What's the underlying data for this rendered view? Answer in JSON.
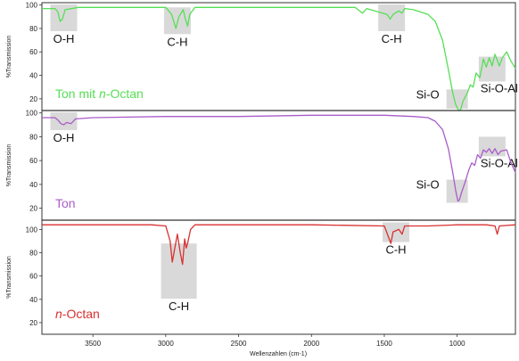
{
  "chart_data": {
    "type": "line",
    "title": "",
    "xlabel": "Wellenzahlen (cm-1)",
    "ylabel": "%Transmission",
    "xlim": [
      3850,
      600
    ],
    "x_reversed": true,
    "x_ticks": [
      3500,
      3000,
      2500,
      2000,
      1500,
      1000
    ],
    "grid": false,
    "panels": [
      {
        "name_prefix": "Ton mit ",
        "name_italic": "n",
        "name_suffix": "-Octan",
        "color": "#55e055",
        "ylim": [
          10,
          102
        ],
        "y_ticks": [
          100,
          80,
          60,
          40,
          20
        ],
        "points": [
          [
            3850,
            97
          ],
          [
            3760,
            97
          ],
          [
            3740,
            94
          ],
          [
            3725,
            86
          ],
          [
            3710,
            88
          ],
          [
            3690,
            96
          ],
          [
            3600,
            98
          ],
          [
            3300,
            98
          ],
          [
            3000,
            98
          ],
          [
            2960,
            92
          ],
          [
            2930,
            80
          ],
          [
            2910,
            90
          ],
          [
            2880,
            96
          ],
          [
            2865,
            88
          ],
          [
            2850,
            82
          ],
          [
            2835,
            92
          ],
          [
            2800,
            98
          ],
          [
            2500,
            98
          ],
          [
            2000,
            98
          ],
          [
            1700,
            98
          ],
          [
            1650,
            93
          ],
          [
            1620,
            97
          ],
          [
            1480,
            92
          ],
          [
            1460,
            88
          ],
          [
            1440,
            92
          ],
          [
            1400,
            95
          ],
          [
            1380,
            93
          ],
          [
            1360,
            97
          ],
          [
            1300,
            96
          ],
          [
            1250,
            94
          ],
          [
            1200,
            92
          ],
          [
            1150,
            86
          ],
          [
            1100,
            70
          ],
          [
            1060,
            45
          ],
          [
            1030,
            25
          ],
          [
            1010,
            15
          ],
          [
            990,
            10
          ],
          [
            975,
            11
          ],
          [
            960,
            18
          ],
          [
            930,
            25
          ],
          [
            910,
            32
          ],
          [
            890,
            30
          ],
          [
            870,
            42
          ],
          [
            845,
            38
          ],
          [
            820,
            54
          ],
          [
            800,
            47
          ],
          [
            780,
            55
          ],
          [
            760,
            48
          ],
          [
            740,
            58
          ],
          [
            710,
            48
          ],
          [
            690,
            55
          ],
          [
            660,
            60
          ],
          [
            630,
            52
          ],
          [
            600,
            46
          ]
        ],
        "annotations": [
          {
            "label": "O-H",
            "x": 3700
          },
          {
            "label": "C-H",
            "x": 2920
          },
          {
            "label": "C-H",
            "x": 1450
          },
          {
            "label": "Si-O",
            "x": 1000
          },
          {
            "label": "Si-O-Al",
            "x": 760
          }
        ]
      },
      {
        "name_prefix": "Ton",
        "name_italic": "",
        "name_suffix": "",
        "color": "#a95cc9",
        "ylim": [
          10,
          102
        ],
        "y_ticks": [
          100,
          80,
          60,
          40,
          20
        ],
        "points": [
          [
            3850,
            96
          ],
          [
            3760,
            96
          ],
          [
            3740,
            94
          ],
          [
            3720,
            91
          ],
          [
            3700,
            90
          ],
          [
            3680,
            92
          ],
          [
            3650,
            91
          ],
          [
            3620,
            95
          ],
          [
            3500,
            96
          ],
          [
            3000,
            97
          ],
          [
            2500,
            97
          ],
          [
            2000,
            98
          ],
          [
            1700,
            98
          ],
          [
            1500,
            98
          ],
          [
            1300,
            97
          ],
          [
            1200,
            96
          ],
          [
            1150,
            93
          ],
          [
            1100,
            86
          ],
          [
            1060,
            70
          ],
          [
            1030,
            50
          ],
          [
            1010,
            35
          ],
          [
            995,
            26
          ],
          [
            985,
            27
          ],
          [
            970,
            33
          ],
          [
            945,
            42
          ],
          [
            920,
            52
          ],
          [
            900,
            58
          ],
          [
            880,
            56
          ],
          [
            860,
            65
          ],
          [
            840,
            62
          ],
          [
            820,
            69
          ],
          [
            800,
            67
          ],
          [
            780,
            70
          ],
          [
            760,
            66
          ],
          [
            740,
            70
          ],
          [
            720,
            65
          ],
          [
            700,
            68
          ],
          [
            660,
            69
          ],
          [
            630,
            58
          ],
          [
            600,
            50
          ]
        ],
        "annotations": [
          {
            "label": "O-H",
            "x": 3700
          },
          {
            "label": "Si-O",
            "x": 1000
          },
          {
            "label": "Si-O-Al",
            "x": 760
          }
        ]
      },
      {
        "name_prefix": "",
        "name_italic": "n",
        "name_suffix": "-Octan",
        "color": "#d93030",
        "ylim": [
          10,
          108
        ],
        "y_ticks": [
          100,
          80,
          60,
          40,
          20
        ],
        "points": [
          [
            3850,
            104
          ],
          [
            3100,
            104
          ],
          [
            3000,
            103
          ],
          [
            2970,
            90
          ],
          [
            2955,
            72
          ],
          [
            2935,
            86
          ],
          [
            2920,
            96
          ],
          [
            2900,
            80
          ],
          [
            2885,
            70
          ],
          [
            2870,
            92
          ],
          [
            2860,
            84
          ],
          [
            2850,
            88
          ],
          [
            2830,
            100
          ],
          [
            2800,
            104
          ],
          [
            2500,
            104
          ],
          [
            2000,
            104
          ],
          [
            1500,
            103
          ],
          [
            1470,
            93
          ],
          [
            1455,
            88
          ],
          [
            1440,
            98
          ],
          [
            1400,
            100
          ],
          [
            1378,
            96
          ],
          [
            1360,
            103
          ],
          [
            1200,
            103
          ],
          [
            1000,
            104
          ],
          [
            800,
            104
          ],
          [
            740,
            103
          ],
          [
            725,
            96
          ],
          [
            710,
            103
          ],
          [
            600,
            104
          ]
        ],
        "annotations": [
          {
            "label": "C-H",
            "x": 2910
          },
          {
            "label": "C-H",
            "x": 1420
          }
        ]
      }
    ]
  }
}
